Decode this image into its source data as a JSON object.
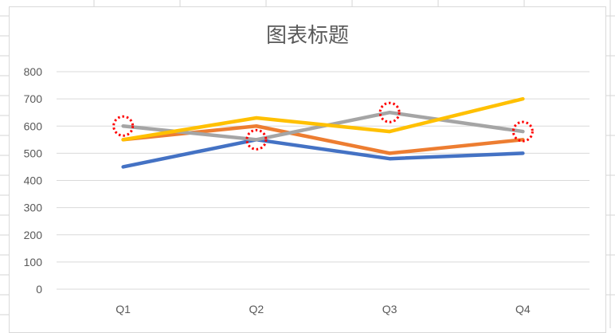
{
  "chart_data": {
    "type": "line",
    "title": "图表标题",
    "xlabel": "",
    "ylabel": "",
    "categories": [
      "Q1",
      "Q2",
      "Q3",
      "Q4"
    ],
    "y_ticks": [
      "0",
      "100",
      "200",
      "300",
      "400",
      "500",
      "600",
      "700",
      "800"
    ],
    "ylim": [
      0,
      800
    ],
    "grid": true,
    "legend": "none",
    "series": [
      {
        "values": [
          450,
          550,
          480,
          500
        ],
        "color": "#4472c4"
      },
      {
        "values": [
          550,
          600,
          500,
          550
        ],
        "color": "#ed7d31"
      },
      {
        "values": [
          600,
          550,
          650,
          580
        ],
        "color": "#a5a5a5"
      },
      {
        "values": [
          550,
          630,
          580,
          700
        ],
        "color": "#ffc000"
      }
    ],
    "highlights": [
      {
        "category": "Q1",
        "value": 600
      },
      {
        "category": "Q2",
        "value": 550
      },
      {
        "category": "Q3",
        "value": 650
      },
      {
        "category": "Q4",
        "value": 580
      }
    ],
    "highlight_color": "#ff0000",
    "gridline_color": "#d9d9d9"
  }
}
